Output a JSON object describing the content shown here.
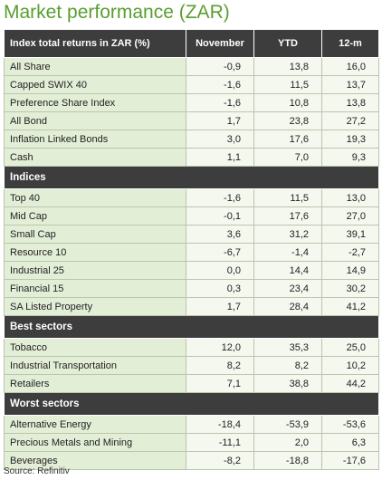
{
  "title": "Market performance (ZAR)",
  "table": {
    "columns": [
      "Index total returns in ZAR (%)",
      "November",
      "YTD",
      "12-m"
    ],
    "sections": [
      {
        "rows": [
          [
            "All Share",
            "-0,9",
            "13,8",
            "16,0"
          ],
          [
            "Capped SWIX 40",
            "-1,6",
            "11,5",
            "13,7"
          ],
          [
            "Preference Share Index",
            "-1,6",
            "10,8",
            "13,8"
          ],
          [
            "All Bond",
            "1,7",
            "23,8",
            "27,2"
          ],
          [
            "Inflation Linked Bonds",
            "3,0",
            "17,6",
            "19,3"
          ],
          [
            "Cash",
            "1,1",
            "7,0",
            "9,3"
          ]
        ]
      },
      {
        "title": "Indices",
        "rows": [
          [
            "Top 40",
            "-1,6",
            "11,5",
            "13,0"
          ],
          [
            "Mid Cap",
            "-0,1",
            "17,6",
            "27,0"
          ],
          [
            "Small Cap",
            "3,6",
            "31,2",
            "39,1"
          ],
          [
            "Resource 10",
            "-6,7",
            "-1,4",
            "-2,7"
          ],
          [
            "Industrial 25",
            "0,0",
            "14,4",
            "14,9"
          ],
          [
            "Financial 15",
            "0,3",
            "23,4",
            "30,2"
          ],
          [
            "SA Listed Property",
            "1,7",
            "28,4",
            "41,2"
          ]
        ]
      },
      {
        "title": "Best sectors",
        "rows": [
          [
            "Tobacco",
            "12,0",
            "35,3",
            "25,0"
          ],
          [
            "Industrial Transportation",
            "8,2",
            "8,2",
            "10,2"
          ],
          [
            "Retailers",
            "7,1",
            "38,8",
            "44,2"
          ]
        ]
      },
      {
        "title": "Worst sectors",
        "rows": [
          [
            "Alternative Energy",
            "-18,4",
            "-53,9",
            "-53,6"
          ],
          [
            "Precious Metals and Mining",
            "-11,1",
            "2,0",
            "6,3"
          ],
          [
            "Beverages",
            "-8,2",
            "-18,8",
            "-17,6"
          ]
        ]
      }
    ]
  },
  "source": "Source: Refinitiv"
}
